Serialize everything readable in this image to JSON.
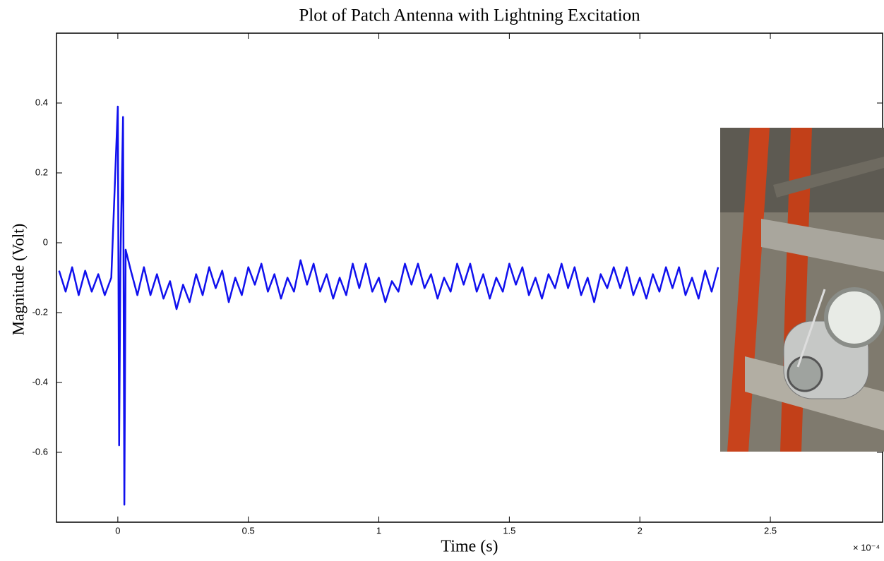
{
  "chart_data": {
    "type": "line",
    "title": "Plot of Patch Antenna with Lightning Excitation",
    "xlabel": "Time (s)",
    "ylabel": "Magnitude (Volt)",
    "x_multiplier": "× 10⁻⁴",
    "xlim": [
      -0.235,
      2.93
    ],
    "ylim": [
      -0.8,
      0.6
    ],
    "xticks": [
      0,
      0.5,
      1,
      1.5,
      2,
      2.5
    ],
    "yticks": [
      0.4,
      0.2,
      0,
      -0.2,
      -0.4,
      -0.6
    ],
    "grid": false,
    "x": [
      -0.225,
      -0.2,
      -0.175,
      -0.15,
      -0.125,
      -0.1,
      -0.075,
      -0.05,
      -0.025,
      0,
      0.005,
      0.01,
      0.02,
      0.025,
      0.03,
      0.05,
      0.075,
      0.1,
      0.125,
      0.15,
      0.175,
      0.2,
      0.225,
      0.25,
      0.275,
      0.3,
      0.325,
      0.35,
      0.375,
      0.4,
      0.425,
      0.45,
      0.475,
      0.5,
      0.525,
      0.55,
      0.575,
      0.6,
      0.625,
      0.65,
      0.675,
      0.7,
      0.725,
      0.75,
      0.775,
      0.8,
      0.825,
      0.85,
      0.875,
      0.9,
      0.925,
      0.95,
      0.975,
      1.0,
      1.025,
      1.05,
      1.075,
      1.1,
      1.125,
      1.15,
      1.175,
      1.2,
      1.225,
      1.25,
      1.275,
      1.3,
      1.325,
      1.35,
      1.375,
      1.4,
      1.425,
      1.45,
      1.475,
      1.5,
      1.525,
      1.55,
      1.575,
      1.6,
      1.625,
      1.65,
      1.675,
      1.7,
      1.725,
      1.75,
      1.775,
      1.8,
      1.825,
      1.85,
      1.875,
      1.9,
      1.925,
      1.95,
      1.975,
      2.0,
      2.025,
      2.05,
      2.075,
      2.1,
      2.125,
      2.15,
      2.175,
      2.2,
      2.225,
      2.25,
      2.275,
      2.3
    ],
    "series": [
      {
        "color": "#1010ee",
        "values": [
          -0.08,
          -0.14,
          -0.07,
          -0.15,
          -0.08,
          -0.14,
          -0.09,
          -0.15,
          -0.1,
          0.39,
          -0.58,
          -0.05,
          0.36,
          -0.75,
          -0.02,
          -0.08,
          -0.15,
          -0.07,
          -0.15,
          -0.09,
          -0.16,
          -0.11,
          -0.19,
          -0.12,
          -0.17,
          -0.09,
          -0.15,
          -0.07,
          -0.13,
          -0.08,
          -0.17,
          -0.1,
          -0.15,
          -0.07,
          -0.12,
          -0.06,
          -0.14,
          -0.09,
          -0.16,
          -0.1,
          -0.14,
          -0.05,
          -0.12,
          -0.06,
          -0.14,
          -0.09,
          -0.16,
          -0.1,
          -0.15,
          -0.06,
          -0.13,
          -0.06,
          -0.14,
          -0.1,
          -0.17,
          -0.11,
          -0.14,
          -0.06,
          -0.12,
          -0.06,
          -0.13,
          -0.09,
          -0.16,
          -0.1,
          -0.14,
          -0.06,
          -0.12,
          -0.06,
          -0.14,
          -0.09,
          -0.16,
          -0.1,
          -0.14,
          -0.06,
          -0.12,
          -0.07,
          -0.15,
          -0.1,
          -0.16,
          -0.09,
          -0.13,
          -0.06,
          -0.13,
          -0.07,
          -0.15,
          -0.1,
          -0.17,
          -0.09,
          -0.13,
          -0.07,
          -0.13,
          -0.07,
          -0.15,
          -0.1,
          -0.16,
          -0.09,
          -0.14,
          -0.07,
          -0.13,
          -0.07,
          -0.15,
          -0.1,
          -0.16,
          -0.08,
          -0.14,
          -0.07
        ]
      }
    ]
  }
}
